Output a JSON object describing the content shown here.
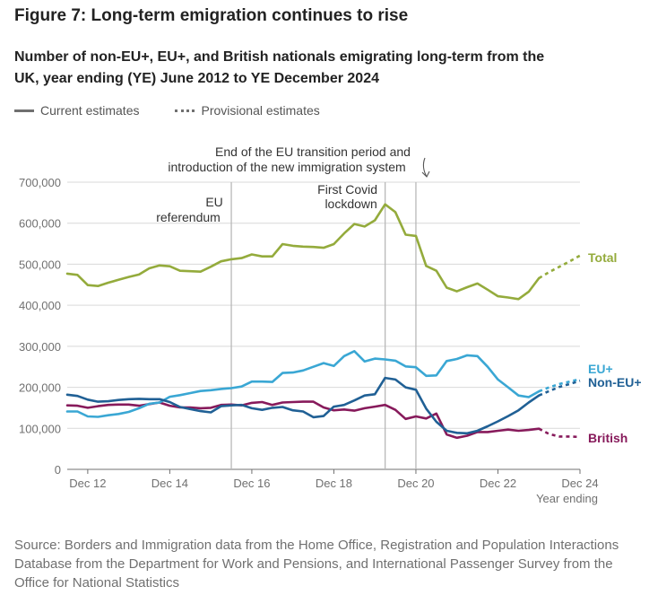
{
  "figure_title": "Figure 7: Long-term emigration continues to rise",
  "subtitle": "Number of non-EU+, EU+, and British nationals emigrating long-term from the UK, year ending (YE) June 2012 to YE December 2024",
  "legend": {
    "current": "Current estimates",
    "provisional": "Provisional estimates"
  },
  "source": "Source: Borders and Immigration data from the Home Office, Registration and Population Interactions Database from the Department for Work and Pensions, and International Passenger Survey from the Office for National Statistics",
  "chart_data": {
    "type": "line",
    "xlabel": "Year ending",
    "ylabel": "",
    "ylim": [
      0,
      700000
    ],
    "yticks": [
      0,
      100000,
      200000,
      300000,
      400000,
      500000,
      600000,
      700000
    ],
    "ytick_labels": [
      "0",
      "100,000",
      "200,000",
      "300,000",
      "400,000",
      "500,000",
      "600,000",
      "700,000"
    ],
    "xticks": [
      {
        "date": "2012-12",
        "label": "Dec 12"
      },
      {
        "date": "2014-12",
        "label": "Dec 14"
      },
      {
        "date": "2016-12",
        "label": "Dec 16"
      },
      {
        "date": "2018-12",
        "label": "Dec 18"
      },
      {
        "date": "2020-12",
        "label": "Dec 20"
      },
      {
        "date": "2022-12",
        "label": "Dec 22"
      },
      {
        "date": "2024-12",
        "label": "Dec 24"
      }
    ],
    "xlim": [
      "2012-06",
      "2024-12"
    ],
    "grid": "horizontal",
    "annotations": [
      {
        "date": "2016-06",
        "label": [
          "EU",
          "referendum"
        ]
      },
      {
        "date": "2020-03",
        "label": [
          "First Covid",
          "lockdown"
        ]
      },
      {
        "date": "2020-12",
        "label": [
          "End of the EU transition period and",
          "introduction of the new immigration system"
        ]
      }
    ],
    "series": [
      {
        "name": "Total",
        "color": "#94ab3c",
        "current": [
          [
            "2012-06",
            477000
          ],
          [
            "2012-09",
            474000
          ],
          [
            "2012-12",
            449000
          ],
          [
            "2013-03",
            447000
          ],
          [
            "2013-06",
            455000
          ],
          [
            "2013-09",
            462000
          ],
          [
            "2013-12",
            469000
          ],
          [
            "2014-03",
            475000
          ],
          [
            "2014-06",
            490000
          ],
          [
            "2014-09",
            497000
          ],
          [
            "2014-12",
            495000
          ],
          [
            "2015-03",
            484000
          ],
          [
            "2015-06",
            483000
          ],
          [
            "2015-09",
            482000
          ],
          [
            "2015-12",
            494000
          ],
          [
            "2016-03",
            507000
          ],
          [
            "2016-06",
            512000
          ],
          [
            "2016-09",
            515000
          ],
          [
            "2016-12",
            524000
          ],
          [
            "2017-03",
            519000
          ],
          [
            "2017-06",
            519000
          ],
          [
            "2017-09",
            549000
          ],
          [
            "2017-12",
            545000
          ],
          [
            "2018-03",
            543000
          ],
          [
            "2018-06",
            542000
          ],
          [
            "2018-09",
            540000
          ],
          [
            "2018-12",
            549000
          ],
          [
            "2019-03",
            575000
          ],
          [
            "2019-06",
            598000
          ],
          [
            "2019-09",
            592000
          ],
          [
            "2019-12",
            607000
          ],
          [
            "2020-03",
            646000
          ],
          [
            "2020-06",
            627000
          ],
          [
            "2020-09",
            572000
          ],
          [
            "2020-12",
            569000
          ],
          [
            "2021-03",
            496000
          ],
          [
            "2021-06",
            484000
          ],
          [
            "2021-09",
            443000
          ],
          [
            "2021-12",
            434000
          ],
          [
            "2022-03",
            444000
          ],
          [
            "2022-06",
            453000
          ],
          [
            "2022-09",
            438000
          ],
          [
            "2022-12",
            422000
          ],
          [
            "2023-03",
            419000
          ],
          [
            "2023-06",
            415000
          ],
          [
            "2023-09",
            433000
          ],
          [
            "2023-12",
            466000
          ]
        ],
        "provisional": [
          [
            "2023-12",
            466000
          ],
          [
            "2024-03",
            481000
          ],
          [
            "2024-06",
            494000
          ],
          [
            "2024-09",
            507000
          ],
          [
            "2024-12",
            521000
          ]
        ]
      },
      {
        "name": "EU+",
        "color": "#3aa7d4",
        "current": [
          [
            "2012-06",
            141000
          ],
          [
            "2012-09",
            141000
          ],
          [
            "2012-12",
            129000
          ],
          [
            "2013-03",
            128000
          ],
          [
            "2013-06",
            132000
          ],
          [
            "2013-09",
            135000
          ],
          [
            "2013-12",
            140000
          ],
          [
            "2014-03",
            149000
          ],
          [
            "2014-06",
            160000
          ],
          [
            "2014-09",
            163000
          ],
          [
            "2014-12",
            177000
          ],
          [
            "2015-03",
            181000
          ],
          [
            "2015-06",
            186000
          ],
          [
            "2015-09",
            191000
          ],
          [
            "2015-12",
            193000
          ],
          [
            "2016-03",
            196000
          ],
          [
            "2016-06",
            198000
          ],
          [
            "2016-09",
            202000
          ],
          [
            "2016-12",
            214000
          ],
          [
            "2017-03",
            214000
          ],
          [
            "2017-06",
            213000
          ],
          [
            "2017-09",
            235000
          ],
          [
            "2017-12",
            236000
          ],
          [
            "2018-03",
            241000
          ],
          [
            "2018-06",
            250000
          ],
          [
            "2018-09",
            259000
          ],
          [
            "2018-12",
            252000
          ],
          [
            "2019-03",
            276000
          ],
          [
            "2019-06",
            288000
          ],
          [
            "2019-09",
            263000
          ],
          [
            "2019-12",
            270000
          ],
          [
            "2020-03",
            268000
          ],
          [
            "2020-06",
            265000
          ],
          [
            "2020-09",
            251000
          ],
          [
            "2020-12",
            249000
          ],
          [
            "2021-03",
            228000
          ],
          [
            "2021-06",
            229000
          ],
          [
            "2021-09",
            264000
          ],
          [
            "2021-12",
            269000
          ],
          [
            "2022-03",
            278000
          ],
          [
            "2022-06",
            276000
          ],
          [
            "2022-09",
            250000
          ],
          [
            "2022-12",
            219000
          ],
          [
            "2023-03",
            200000
          ],
          [
            "2023-06",
            180000
          ],
          [
            "2023-09",
            176000
          ],
          [
            "2023-12",
            190000
          ]
        ],
        "provisional": [
          [
            "2023-12",
            190000
          ],
          [
            "2024-03",
            200000
          ],
          [
            "2024-06",
            208000
          ],
          [
            "2024-09",
            214000
          ],
          [
            "2024-12",
            220000
          ]
        ]
      },
      {
        "name": "Non-EU+",
        "color": "#206095",
        "current": [
          [
            "2012-06",
            182000
          ],
          [
            "2012-09",
            179000
          ],
          [
            "2012-12",
            170000
          ],
          [
            "2013-03",
            165000
          ],
          [
            "2013-06",
            166000
          ],
          [
            "2013-09",
            169000
          ],
          [
            "2013-12",
            171000
          ],
          [
            "2014-03",
            172000
          ],
          [
            "2014-06",
            171000
          ],
          [
            "2014-09",
            171000
          ],
          [
            "2014-12",
            164000
          ],
          [
            "2015-03",
            152000
          ],
          [
            "2015-06",
            147000
          ],
          [
            "2015-09",
            142000
          ],
          [
            "2015-12",
            139000
          ],
          [
            "2016-03",
            154000
          ],
          [
            "2016-06",
            156000
          ],
          [
            "2016-09",
            157000
          ],
          [
            "2016-12",
            149000
          ],
          [
            "2017-03",
            145000
          ],
          [
            "2017-06",
            150000
          ],
          [
            "2017-09",
            152000
          ],
          [
            "2017-12",
            144000
          ],
          [
            "2018-03",
            141000
          ],
          [
            "2018-06",
            127000
          ],
          [
            "2018-09",
            130000
          ],
          [
            "2018-12",
            153000
          ],
          [
            "2019-03",
            157000
          ],
          [
            "2019-06",
            168000
          ],
          [
            "2019-09",
            180000
          ],
          [
            "2019-12",
            183000
          ],
          [
            "2020-03",
            223000
          ],
          [
            "2020-06",
            219000
          ],
          [
            "2020-09",
            200000
          ],
          [
            "2020-12",
            194000
          ],
          [
            "2021-03",
            148000
          ],
          [
            "2021-06",
            116000
          ],
          [
            "2021-09",
            94000
          ],
          [
            "2021-12",
            89000
          ],
          [
            "2022-03",
            88000
          ],
          [
            "2022-06",
            94000
          ],
          [
            "2022-09",
            105000
          ],
          [
            "2022-12",
            117000
          ],
          [
            "2023-03",
            130000
          ],
          [
            "2023-06",
            144000
          ],
          [
            "2023-09",
            163000
          ],
          [
            "2023-12",
            180000
          ]
        ],
        "provisional": [
          [
            "2023-12",
            180000
          ],
          [
            "2024-03",
            191000
          ],
          [
            "2024-06",
            201000
          ],
          [
            "2024-09",
            208000
          ],
          [
            "2024-12",
            216000
          ]
        ]
      },
      {
        "name": "British",
        "color": "#871a5b",
        "current": [
          [
            "2012-06",
            156000
          ],
          [
            "2012-09",
            155000
          ],
          [
            "2012-12",
            150000
          ],
          [
            "2013-03",
            154000
          ],
          [
            "2013-06",
            157000
          ],
          [
            "2013-09",
            158000
          ],
          [
            "2013-12",
            158000
          ],
          [
            "2014-03",
            155000
          ],
          [
            "2014-06",
            159000
          ],
          [
            "2014-09",
            163000
          ],
          [
            "2014-12",
            155000
          ],
          [
            "2015-03",
            151000
          ],
          [
            "2015-06",
            151000
          ],
          [
            "2015-09",
            149000
          ],
          [
            "2015-12",
            150000
          ],
          [
            "2016-03",
            157000
          ],
          [
            "2016-06",
            158000
          ],
          [
            "2016-09",
            156000
          ],
          [
            "2016-12",
            162000
          ],
          [
            "2017-03",
            164000
          ],
          [
            "2017-06",
            157000
          ],
          [
            "2017-09",
            163000
          ],
          [
            "2017-12",
            164000
          ],
          [
            "2018-03",
            165000
          ],
          [
            "2018-06",
            165000
          ],
          [
            "2018-09",
            151000
          ],
          [
            "2018-12",
            144000
          ],
          [
            "2019-03",
            146000
          ],
          [
            "2019-06",
            143000
          ],
          [
            "2019-09",
            149000
          ],
          [
            "2019-12",
            153000
          ],
          [
            "2020-03",
            157000
          ],
          [
            "2020-06",
            145000
          ],
          [
            "2020-09",
            123000
          ],
          [
            "2020-12",
            129000
          ],
          [
            "2021-03",
            124000
          ],
          [
            "2021-06",
            136000
          ],
          [
            "2021-09",
            85000
          ],
          [
            "2021-12",
            77000
          ],
          [
            "2022-03",
            82000
          ],
          [
            "2022-06",
            91000
          ],
          [
            "2022-09",
            91000
          ],
          [
            "2022-12",
            94000
          ],
          [
            "2023-03",
            97000
          ],
          [
            "2023-06",
            94000
          ],
          [
            "2023-09",
            96000
          ],
          [
            "2023-12",
            99000
          ]
        ],
        "provisional": [
          [
            "2023-12",
            99000
          ],
          [
            "2024-03",
            86000
          ],
          [
            "2024-06",
            80000
          ],
          [
            "2024-09",
            80000
          ],
          [
            "2024-12",
            79000
          ]
        ]
      }
    ],
    "end_labels": [
      {
        "series": "Total",
        "text": "Total"
      },
      {
        "series": "EU+",
        "text": "EU+"
      },
      {
        "series": "Non-EU+",
        "text": "Non-EU+"
      },
      {
        "series": "British",
        "text": "British"
      }
    ]
  }
}
